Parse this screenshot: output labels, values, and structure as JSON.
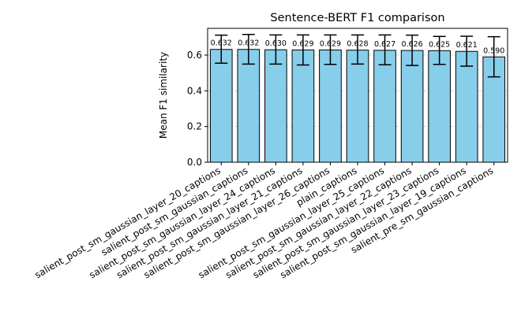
{
  "chart_data": {
    "type": "bar",
    "title": "Sentence-BERT F1 comparison",
    "xlabel": "",
    "ylabel": "Mean F1 similarity",
    "ylim": [
      0,
      0.75
    ],
    "yticks": [
      "0.0",
      "0.2",
      "0.4",
      "0.6"
    ],
    "grid": "horizontal dashed",
    "bar_color": "#87ceeb",
    "bar_edge_color": "#000000",
    "categories": [
      "salient_post_sm_gaussian_layer_20_captions",
      "salient_post_sm_gaussian_captions",
      "salient_post_sm_gaussian_layer_24_captions",
      "salient_post_sm_gaussian_layer_21_captions",
      "salient_post_sm_gaussian_layer_26_captions",
      "plain_captions",
      "salient_post_sm_gaussian_layer_25_captions",
      "salient_post_sm_gaussian_layer_22_captions",
      "salient_post_sm_gaussian_layer_23_captions",
      "salient_post_sm_gaussian_layer_19_captions",
      "salient_pre_sm_gaussian_captions"
    ],
    "values": [
      0.632,
      0.632,
      0.63,
      0.629,
      0.629,
      0.628,
      0.627,
      0.626,
      0.625,
      0.621,
      0.59
    ],
    "value_labels": [
      "0.632",
      "0.632",
      "0.630",
      "0.629",
      "0.629",
      "0.628",
      "0.627",
      "0.626",
      "0.625",
      "0.621",
      "0.590"
    ],
    "error_low": [
      0.555,
      0.55,
      0.55,
      0.545,
      0.548,
      0.55,
      0.546,
      0.542,
      0.548,
      0.538,
      0.478
    ],
    "error_high": [
      0.712,
      0.716,
      0.713,
      0.713,
      0.713,
      0.713,
      0.713,
      0.712,
      0.705,
      0.706,
      0.703
    ]
  }
}
